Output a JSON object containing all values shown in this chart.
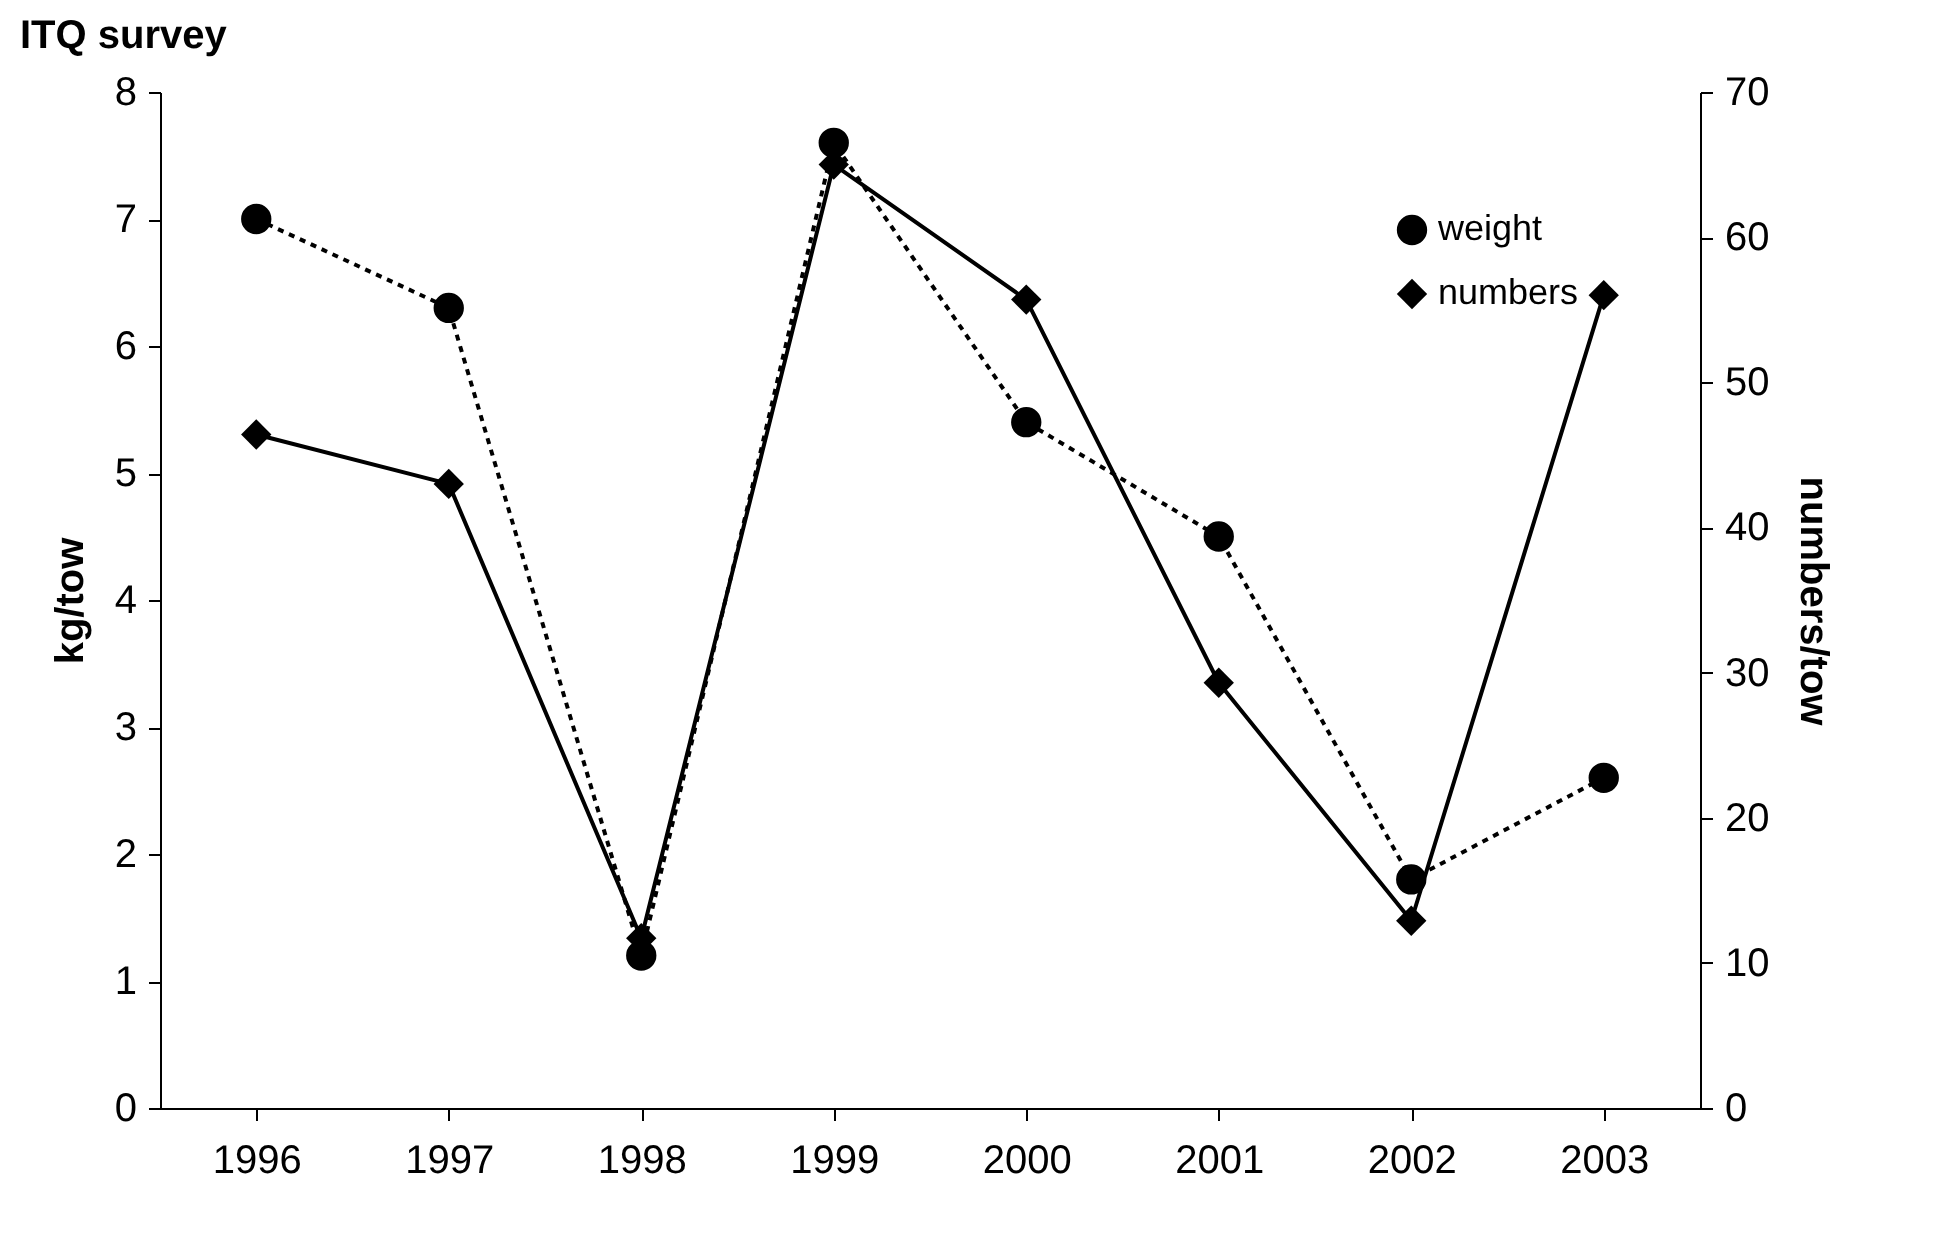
{
  "chart_data": {
    "type": "line",
    "title": "ITQ survey",
    "ylabel": "kg/tow",
    "y2label": "numbers/tow",
    "categories": [
      "1996",
      "1997",
      "1998",
      "1999",
      "2000",
      "2001",
      "2002",
      "2003"
    ],
    "series": [
      {
        "name": "weight",
        "color": "#000000",
        "marker": "circle",
        "line_style": "dotted",
        "values": [
          7.0,
          6.3,
          1.2,
          7.6,
          5.4,
          4.5,
          1.8,
          2.6
        ]
      },
      {
        "name": "numbers",
        "color": "#000000",
        "marker": "diamond",
        "line_style": "solid",
        "axis": "y2",
        "values": [
          46.4,
          43,
          11.7,
          65,
          55.7,
          29.3,
          12.9,
          56
        ]
      }
    ],
    "ylim": [
      0,
      8
    ],
    "yticks": [
      0,
      1,
      2,
      3,
      4,
      5,
      6,
      7,
      8
    ],
    "y2lim": [
      0,
      70
    ],
    "y2ticks": [
      0,
      10,
      20,
      30,
      40,
      50,
      60,
      70
    ],
    "grid": false,
    "legend": "top right"
  }
}
